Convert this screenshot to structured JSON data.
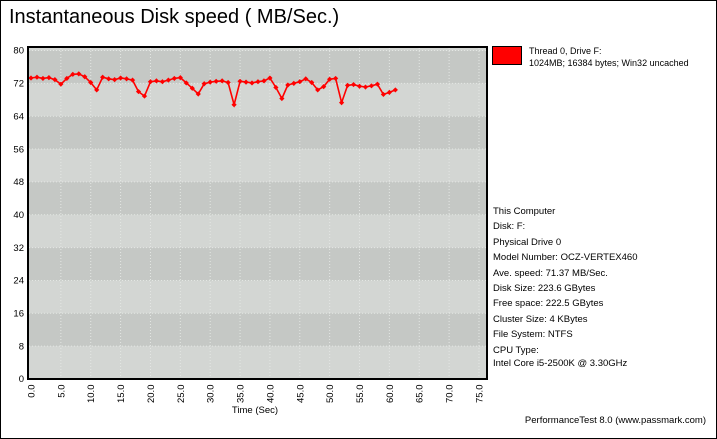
{
  "title": "Instantaneous Disk speed ( MB/Sec.)",
  "legend": {
    "swatch_color": "#ff0000",
    "line1": "Thread 0, Drive F:",
    "line2": "1024MB; 16384 bytes; Win32 uncached"
  },
  "info": {
    "lines": [
      "This Computer",
      "Disk: F:",
      "Physical Drive 0",
      "Model Number: OCZ-VERTEX460",
      "Ave. speed: 71.37 MB/Sec.",
      "Disk Size: 223.6 GBytes",
      "Free space: 222.5 GBytes",
      "Cluster Size: 4 KBytes",
      "File System: NTFS",
      "CPU Type:",
      "Intel Core i5-2500K @ 3.30GHz"
    ]
  },
  "footer": "PerformanceTest 8.0 (www.passmark.com)",
  "chart_data": {
    "type": "line",
    "title": "Instantaneous Disk speed ( MB/Sec.)",
    "xlabel": "Time (Sec)",
    "ylabel": "",
    "xlim": [
      0,
      76.4
    ],
    "ylim": [
      0,
      80
    ],
    "xticks": [
      0,
      5,
      10,
      15,
      20,
      25,
      30,
      35,
      40,
      45,
      50,
      55,
      60,
      65,
      70,
      75
    ],
    "xtick_labels": [
      "0.0",
      "5.0",
      "10.0",
      "15.0",
      "20.0",
      "25.0",
      "30.0",
      "35.0",
      "40.0",
      "45.0",
      "50.0",
      "55.0",
      "60.0",
      "65.0",
      "70.0",
      "75.0"
    ],
    "yticks": [
      0,
      8,
      16,
      24,
      32,
      40,
      48,
      56,
      64,
      72,
      80
    ],
    "ytick_labels": [
      "0",
      "8",
      "16",
      "24",
      "32",
      "40",
      "48",
      "56",
      "64",
      "72",
      "80"
    ],
    "grid": true,
    "grid_style": "dotted",
    "legend_position": "top-right",
    "colors": {
      "line": "#ff0000",
      "band_light": "#d3d6d3",
      "band_dark": "#c5c8c5",
      "grid": "#e4e7e4",
      "axis": "#000000"
    },
    "series": [
      {
        "name": "Thread 0, Drive F: 1024MB; 16384 bytes; Win32 uncached",
        "color": "#ff0000",
        "x": [
          0,
          1,
          2,
          3,
          4,
          5,
          6,
          7,
          8,
          9,
          10,
          11,
          12,
          13,
          14,
          15,
          16,
          17,
          18,
          19,
          20,
          21,
          22,
          23,
          24,
          25,
          26,
          27,
          28,
          29,
          30,
          31,
          32,
          33,
          34,
          35,
          36,
          37,
          38,
          39,
          40,
          41,
          42,
          43,
          44,
          45,
          46,
          47,
          48,
          49,
          50,
          51,
          52,
          53,
          54,
          55,
          56,
          57,
          58,
          59,
          60,
          61
        ],
        "y": [
          73.3,
          73.5,
          73.2,
          73.4,
          72.9,
          71.8,
          73.2,
          74.2,
          74.3,
          73.6,
          72.2,
          70.4,
          73.5,
          73.1,
          72.9,
          73.3,
          73.1,
          72.8,
          70.0,
          68.9,
          72.4,
          72.6,
          72.4,
          72.8,
          73.2,
          73.4,
          72.1,
          70.8,
          69.4,
          71.9,
          72.3,
          72.5,
          72.6,
          72.2,
          66.8,
          72.5,
          72.3,
          72.1,
          72.4,
          72.6,
          73.3,
          71.0,
          68.3,
          71.6,
          72.0,
          72.4,
          73.1,
          72.2,
          70.4,
          71.2,
          73.0,
          73.2,
          67.3,
          71.5,
          71.7,
          71.3,
          71.1,
          71.4,
          71.8,
          69.3,
          69.8,
          70.4
        ]
      }
    ]
  }
}
